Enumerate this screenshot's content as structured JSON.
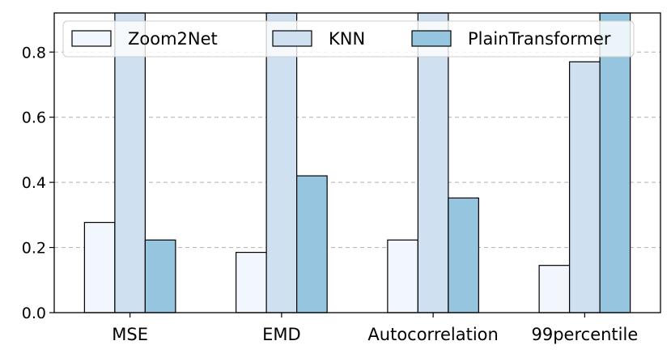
{
  "chart_data": {
    "type": "bar",
    "title": "",
    "xlabel": "",
    "ylabel": "",
    "categories": [
      "MSE",
      "EMD",
      "Autocorrelation",
      "99percentile"
    ],
    "series": [
      {
        "name": "Zoom2Net",
        "values": [
          0.277,
          0.185,
          0.223,
          0.145
        ],
        "color": "#f1f7fd"
      },
      {
        "name": "KNN",
        "values": [
          1.0,
          1.0,
          1.0,
          0.77
        ],
        "color": "#cfe0f1"
      },
      {
        "name": "PlainTransformer",
        "values": [
          0.223,
          0.42,
          0.352,
          1.0
        ],
        "color": "#95c5df"
      }
    ],
    "ylim": [
      0,
      0.92
    ],
    "yticks": [
      0.0,
      0.2,
      0.4,
      0.6,
      0.8
    ],
    "ytick_labels": [
      "0.0",
      "0.2",
      "0.4",
      "0.6",
      "0.8"
    ],
    "grid": "y-dashed",
    "legend": "top, 3 columns"
  }
}
